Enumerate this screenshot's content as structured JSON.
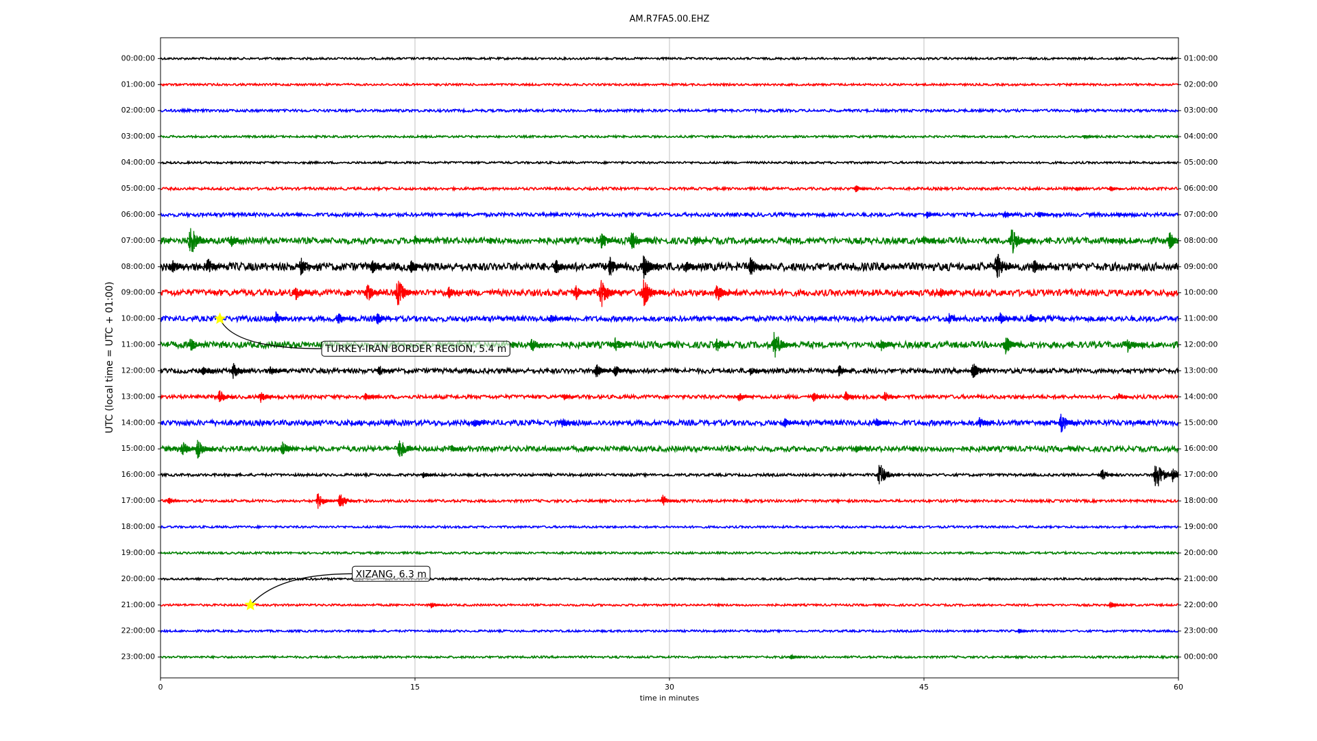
{
  "chart_data": {
    "type": "helicorder",
    "title": "AM.R7FA5.00.EHZ",
    "xlabel": "time in minutes",
    "ylabel": "UTC (local time = UTC + 01:00)",
    "xlim": [
      0,
      60
    ],
    "xticks": [
      0,
      15,
      30,
      45,
      60
    ],
    "ylim": [
      -0.8,
      23.8
    ],
    "grid": true,
    "colors": [
      "#000000",
      "#ff0000",
      "#0000ff",
      "#008000"
    ],
    "yticks": [
      {
        "value": 0,
        "label": "00:00:00"
      },
      {
        "value": 1,
        "label": "01:00:00"
      },
      {
        "value": 2,
        "label": "02:00:00"
      },
      {
        "value": 3,
        "label": "03:00:00"
      },
      {
        "value": 4,
        "label": "04:00:00"
      },
      {
        "value": 5,
        "label": "05:00:00"
      },
      {
        "value": 6,
        "label": "06:00:00"
      },
      {
        "value": 7,
        "label": "07:00:00"
      },
      {
        "value": 8,
        "label": "08:00:00"
      },
      {
        "value": 9,
        "label": "09:00:00"
      },
      {
        "value": 10,
        "label": "10:00:00"
      },
      {
        "value": 11,
        "label": "11:00:00"
      },
      {
        "value": 12,
        "label": "12:00:00"
      },
      {
        "value": 13,
        "label": "13:00:00"
      },
      {
        "value": 14,
        "label": "14:00:00"
      },
      {
        "value": 15,
        "label": "15:00:00"
      },
      {
        "value": 16,
        "label": "16:00:00"
      },
      {
        "value": 17,
        "label": "17:00:00"
      },
      {
        "value": 18,
        "label": "18:00:00"
      },
      {
        "value": 19,
        "label": "19:00:00"
      },
      {
        "value": 20,
        "label": "20:00:00"
      },
      {
        "value": 21,
        "label": "21:00:00"
      },
      {
        "value": 22,
        "label": "22:00:00"
      },
      {
        "value": 23,
        "label": "23:00:00"
      }
    ],
    "y2ticks": [
      {
        "value": 0,
        "label": "01:00:00"
      },
      {
        "value": 1,
        "label": "02:00:00"
      },
      {
        "value": 2,
        "label": "03:00:00"
      },
      {
        "value": 3,
        "label": "04:00:00"
      },
      {
        "value": 4,
        "label": "05:00:00"
      },
      {
        "value": 5,
        "label": "06:00:00"
      },
      {
        "value": 6,
        "label": "07:00:00"
      },
      {
        "value": 7,
        "label": "08:00:00"
      },
      {
        "value": 8,
        "label": "09:00:00"
      },
      {
        "value": 9,
        "label": "10:00:00"
      },
      {
        "value": 10,
        "label": "11:00:00"
      },
      {
        "value": 11,
        "label": "12:00:00"
      },
      {
        "value": 12,
        "label": "13:00:00"
      },
      {
        "value": 13,
        "label": "14:00:00"
      },
      {
        "value": 14,
        "label": "15:00:00"
      },
      {
        "value": 15,
        "label": "16:00:00"
      },
      {
        "value": 16,
        "label": "17:00:00"
      },
      {
        "value": 17,
        "label": "18:00:00"
      },
      {
        "value": 18,
        "label": "19:00:00"
      },
      {
        "value": 19,
        "label": "20:00:00"
      },
      {
        "value": 20,
        "label": "21:00:00"
      },
      {
        "value": 21,
        "label": "22:00:00"
      },
      {
        "value": 22,
        "label": "23:00:00"
      },
      {
        "value": 23,
        "label": "00:00:00"
      }
    ],
    "rows": [
      {
        "noise": 0.04,
        "events": []
      },
      {
        "noise": 0.04,
        "events": []
      },
      {
        "noise": 0.05,
        "events": []
      },
      {
        "noise": 0.04,
        "events": [
          [
            54.5,
            0.1
          ]
        ]
      },
      {
        "noise": 0.04,
        "events": []
      },
      {
        "noise": 0.05,
        "events": [
          [
            41,
            0.15
          ],
          [
            54,
            0.1
          ],
          [
            56,
            0.1
          ]
        ]
      },
      {
        "noise": 0.07,
        "events": [
          [
            45.2,
            0.15
          ],
          [
            49.8,
            0.15
          ],
          [
            51.8,
            0.15
          ],
          [
            56.5,
            0.1
          ]
        ]
      },
      {
        "noise": 0.12,
        "events": [
          [
            1.8,
            0.6
          ],
          [
            4.2,
            0.25
          ],
          [
            15,
            0.2
          ],
          [
            26,
            0.35
          ],
          [
            27.8,
            0.4
          ],
          [
            31.5,
            0.2
          ],
          [
            45,
            0.2
          ],
          [
            50.2,
            0.55
          ],
          [
            59.5,
            0.35
          ]
        ]
      },
      {
        "noise": 0.15,
        "events": [
          [
            0.7,
            0.3
          ],
          [
            2.8,
            0.35
          ],
          [
            8.3,
            0.4
          ],
          [
            12.5,
            0.3
          ],
          [
            14.8,
            0.3
          ],
          [
            23.3,
            0.35
          ],
          [
            26.5,
            0.4
          ],
          [
            28.5,
            0.5
          ],
          [
            31,
            0.25
          ],
          [
            34.8,
            0.4
          ],
          [
            49.3,
            0.6
          ],
          [
            51.5,
            0.35
          ]
        ]
      },
      {
        "noise": 0.12,
        "events": [
          [
            8,
            0.3
          ],
          [
            12.2,
            0.4
          ],
          [
            14,
            0.55
          ],
          [
            17,
            0.25
          ],
          [
            24.5,
            0.3
          ],
          [
            26,
            0.6
          ],
          [
            28.5,
            0.55
          ],
          [
            32.8,
            0.4
          ],
          [
            46,
            0.2
          ]
        ]
      },
      {
        "noise": 0.1,
        "events": [
          [
            6.8,
            0.3
          ],
          [
            10.5,
            0.25
          ],
          [
            12.8,
            0.25
          ],
          [
            23,
            0.2
          ],
          [
            46.5,
            0.25
          ],
          [
            49.5,
            0.25
          ],
          [
            51.3,
            0.2
          ]
        ]
      },
      {
        "noise": 0.12,
        "events": [
          [
            1.8,
            0.3
          ],
          [
            21.9,
            0.3
          ],
          [
            26.8,
            0.3
          ],
          [
            32.8,
            0.3
          ],
          [
            36.2,
            0.55
          ],
          [
            42.5,
            0.25
          ],
          [
            49.8,
            0.4
          ],
          [
            57,
            0.35
          ]
        ]
      },
      {
        "noise": 0.09,
        "events": [
          [
            2.5,
            0.2
          ],
          [
            4.3,
            0.35
          ],
          [
            6.5,
            0.2
          ],
          [
            12.9,
            0.25
          ],
          [
            25.7,
            0.3
          ],
          [
            26.8,
            0.25
          ],
          [
            34.8,
            0.2
          ],
          [
            40,
            0.25
          ],
          [
            47.9,
            0.35
          ]
        ]
      },
      {
        "noise": 0.07,
        "events": [
          [
            3.5,
            0.3
          ],
          [
            5.9,
            0.25
          ],
          [
            12.1,
            0.15
          ],
          [
            23.8,
            0.15
          ],
          [
            34.1,
            0.2
          ],
          [
            38.5,
            0.2
          ],
          [
            40.4,
            0.2
          ],
          [
            42.7,
            0.2
          ],
          [
            56.5,
            0.15
          ]
        ]
      },
      {
        "noise": 0.1,
        "events": [
          [
            18.5,
            0.2
          ],
          [
            23.7,
            0.2
          ],
          [
            36.8,
            0.2
          ],
          [
            42.2,
            0.2
          ],
          [
            48.3,
            0.25
          ],
          [
            53.1,
            0.4
          ]
        ]
      },
      {
        "noise": 0.1,
        "events": [
          [
            1.3,
            0.35
          ],
          [
            2.2,
            0.4
          ],
          [
            7.2,
            0.3
          ],
          [
            14.1,
            0.45
          ],
          [
            17.2,
            0.15
          ],
          [
            41,
            0.15
          ]
        ]
      },
      {
        "noise": 0.05,
        "events": [
          [
            15.5,
            0.15
          ],
          [
            42.4,
            0.5
          ],
          [
            55.5,
            0.25
          ],
          [
            58.7,
            0.6
          ],
          [
            59.7,
            0.35
          ]
        ]
      },
      {
        "noise": 0.05,
        "events": [
          [
            0.5,
            0.15
          ],
          [
            9.3,
            0.35
          ],
          [
            10.6,
            0.35
          ],
          [
            29.6,
            0.25
          ]
        ]
      },
      {
        "noise": 0.04,
        "events": []
      },
      {
        "noise": 0.04,
        "events": []
      },
      {
        "noise": 0.04,
        "events": []
      },
      {
        "noise": 0.04,
        "events": [
          [
            16,
            0.15
          ],
          [
            56,
            0.15
          ]
        ]
      },
      {
        "noise": 0.04,
        "events": [
          [
            50.6,
            0.1
          ]
        ]
      },
      {
        "noise": 0.04,
        "events": [
          [
            37.2,
            0.12
          ]
        ]
      }
    ],
    "annotations": [
      {
        "text": "TURKEY-IRAN BORDER REGION, 5.4 m",
        "x": 3.5,
        "row": 10
      },
      {
        "text": "XIZANG, 6.3 m",
        "x": 5.3,
        "row": 21
      }
    ]
  }
}
